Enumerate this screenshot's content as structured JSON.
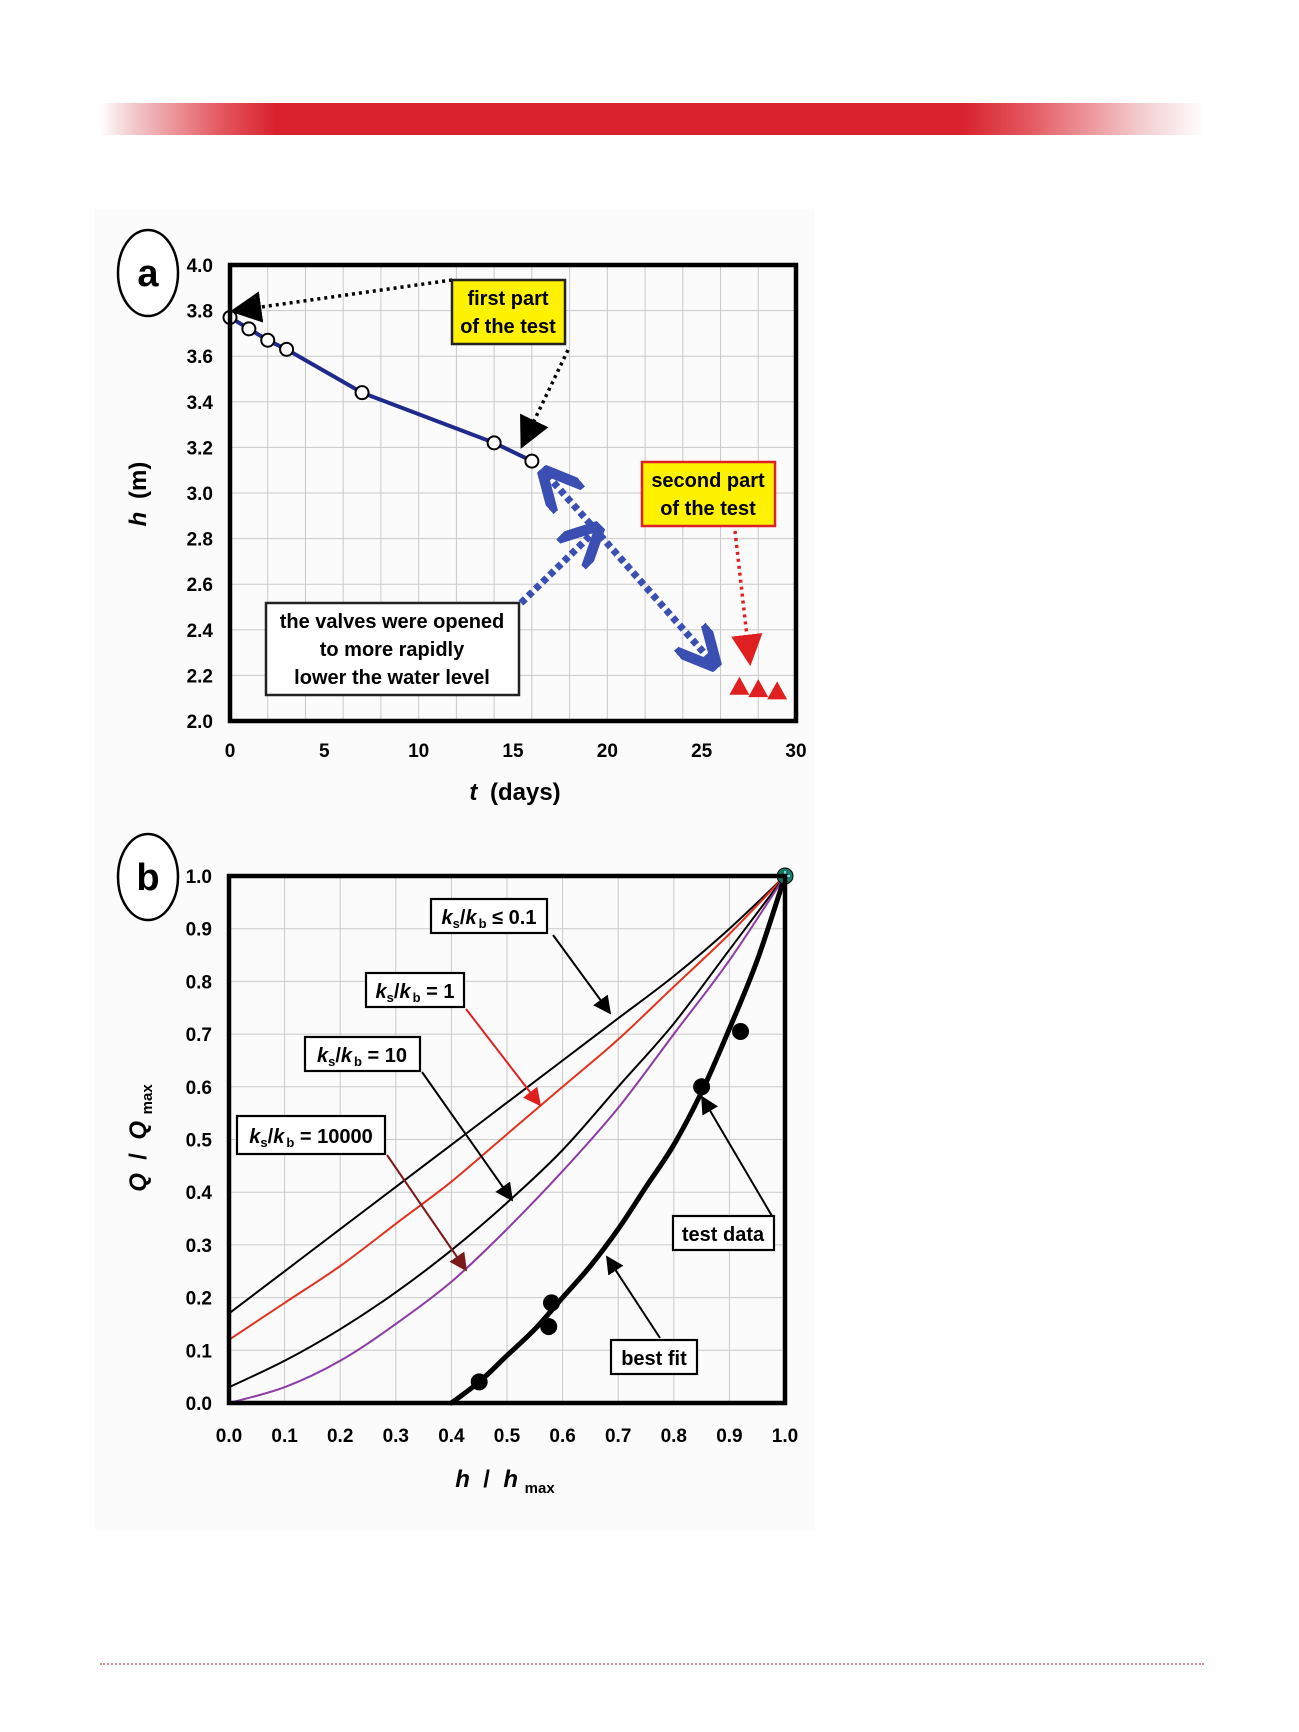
{
  "chart_data": [
    {
      "type": "line",
      "panel_label": "a",
      "xlabel": {
        "var": "t",
        "unit": "(days)"
      },
      "ylabel": {
        "var": "h",
        "unit": "(m)"
      },
      "xlim": [
        0,
        30
      ],
      "ylim": [
        2.0,
        4.0
      ],
      "xticks": [
        "0",
        "5",
        "10",
        "15",
        "20",
        "25",
        "30"
      ],
      "yticks": [
        "2.0",
        "2.2",
        "2.4",
        "2.6",
        "2.8",
        "3.0",
        "3.2",
        "3.4",
        "3.6",
        "3.8",
        "4.0"
      ],
      "grid": true,
      "series": [
        {
          "name": "first part of the test",
          "marker": "open-circle",
          "color": "#1f2a8c",
          "x": [
            0,
            1,
            2,
            3,
            7,
            14,
            16
          ],
          "y": [
            3.77,
            3.72,
            3.67,
            3.63,
            3.44,
            3.22,
            3.14
          ]
        },
        {
          "name": "second part of the test",
          "marker": "triangle",
          "color": "#e02020",
          "x": [
            27,
            28,
            29
          ],
          "y": [
            2.15,
            2.14,
            2.13
          ]
        }
      ],
      "annotations": [
        {
          "text": [
            "first part",
            "of the test"
          ],
          "bg": "#fff200",
          "border": "#222222"
        },
        {
          "text": [
            "second part",
            "of the test"
          ],
          "bg": "#fff200",
          "border": "#e02020"
        },
        {
          "text": [
            "the valves were opened",
            "to more rapidly",
            "lower the water level"
          ],
          "bg": "#ffffff",
          "border": "#222222"
        }
      ]
    },
    {
      "type": "line",
      "panel_label": "b",
      "xlabel": {
        "var": "h",
        "sep": " / ",
        "var2": "h",
        "sub": "max"
      },
      "ylabel": {
        "var": "Q",
        "sep": " / ",
        "var2": "Q",
        "sub": "max"
      },
      "xlim": [
        0,
        1
      ],
      "ylim": [
        0,
        1
      ],
      "xticks": [
        "0.0",
        "0.1",
        "0.2",
        "0.3",
        "0.4",
        "0.5",
        "0.6",
        "0.7",
        "0.8",
        "0.9",
        "1.0"
      ],
      "yticks": [
        "0.0",
        "0.1",
        "0.2",
        "0.3",
        "0.4",
        "0.5",
        "0.6",
        "0.7",
        "0.8",
        "0.9",
        "1.0"
      ],
      "grid": true,
      "curves": [
        {
          "k": "s",
          "b": "b",
          "rel": " ≤ 0.1",
          "color": "#000000",
          "width": 2,
          "x": [
            0,
            0.1,
            0.2,
            0.3,
            0.4,
            0.5,
            0.6,
            0.7,
            0.8,
            0.9,
            1.0
          ],
          "y": [
            0.17,
            0.25,
            0.33,
            0.41,
            0.49,
            0.57,
            0.65,
            0.73,
            0.81,
            0.9,
            1.0
          ]
        },
        {
          "k": "s",
          "b": "b",
          "rel": " = 1",
          "color": "#e0331f",
          "width": 2,
          "x": [
            0,
            0.1,
            0.2,
            0.3,
            0.4,
            0.5,
            0.6,
            0.7,
            0.8,
            0.9,
            1.0
          ],
          "y": [
            0.12,
            0.19,
            0.26,
            0.34,
            0.42,
            0.51,
            0.6,
            0.69,
            0.79,
            0.89,
            1.0
          ]
        },
        {
          "k": "s",
          "b": "b",
          "rel": " = 10",
          "color": "#000000",
          "width": 2,
          "x": [
            0,
            0.1,
            0.2,
            0.3,
            0.4,
            0.5,
            0.6,
            0.7,
            0.8,
            0.9,
            1.0
          ],
          "y": [
            0.03,
            0.08,
            0.14,
            0.21,
            0.29,
            0.38,
            0.48,
            0.6,
            0.72,
            0.86,
            1.0
          ]
        },
        {
          "k": "s",
          "b": "b",
          "rel": " = 10000",
          "color": "#8e3aa6",
          "width": 2,
          "x": [
            0,
            0.1,
            0.2,
            0.3,
            0.4,
            0.5,
            0.6,
            0.7,
            0.8,
            0.9,
            1.0
          ],
          "y": [
            0.0,
            0.03,
            0.08,
            0.15,
            0.23,
            0.33,
            0.44,
            0.56,
            0.7,
            0.84,
            1.0
          ]
        },
        {
          "name": "best fit",
          "color": "#000000",
          "width": 5,
          "x": [
            0.4,
            0.45,
            0.5,
            0.55,
            0.6,
            0.65,
            0.7,
            0.75,
            0.8,
            0.85,
            0.9,
            0.95,
            1.0
          ],
          "y": [
            0.0,
            0.04,
            0.09,
            0.14,
            0.2,
            0.26,
            0.33,
            0.41,
            0.49,
            0.59,
            0.71,
            0.84,
            1.0
          ]
        }
      ],
      "test_data": {
        "name": "test data",
        "x": [
          0.45,
          0.575,
          0.58,
          0.85,
          0.92,
          1.0
        ],
        "y": [
          0.04,
          0.145,
          0.19,
          0.6,
          0.705,
          1.0
        ]
      },
      "labels": [
        {
          "k": "s",
          "b": "b",
          "rel": " ≤ 0.1"
        },
        {
          "k": "s",
          "b": "b",
          "rel": " = 1"
        },
        {
          "k": "s",
          "b": "b",
          "rel": " = 10"
        },
        {
          "k": "s",
          "b": "b",
          "rel": " = 10000"
        },
        {
          "text": "test data"
        },
        {
          "text": "best fit"
        }
      ]
    }
  ]
}
